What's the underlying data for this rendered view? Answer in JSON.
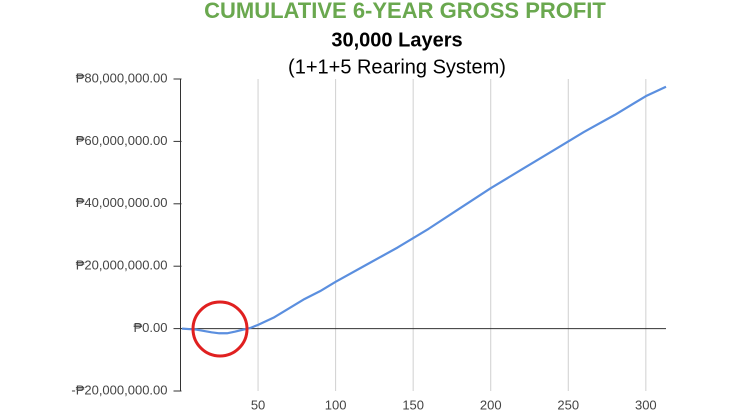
{
  "chart_data": {
    "type": "line",
    "title": "CUMULATIVE 6-YEAR GROSS PROFIT",
    "subtitles": [
      "30,000 Layers",
      "(1+1+5 Rearing System)"
    ],
    "x": [
      1,
      10,
      20,
      25,
      30,
      35,
      40,
      45,
      50,
      60,
      70,
      80,
      90,
      100,
      120,
      140,
      160,
      180,
      200,
      220,
      240,
      260,
      280,
      300,
      313
    ],
    "series": [
      {
        "color": "#5b8fdf",
        "values": [
          0,
          -300000,
          -1200000,
          -1500000,
          -1500000,
          -1000000,
          -400000,
          200000,
          1200000,
          3500000,
          6500000,
          9500000,
          12000000,
          15000000,
          20500000,
          26000000,
          32000000,
          38500000,
          45000000,
          51000000,
          57000000,
          63000000,
          68500000,
          74500000,
          77500000
        ]
      }
    ],
    "xlim": [
      0,
      313
    ],
    "xticks": [
      50,
      100,
      150,
      200,
      250,
      300
    ],
    "ylim": [
      -20000000,
      80000000
    ],
    "yticks": [
      {
        "value": -20000000,
        "label": "-₱20,000,000.00"
      },
      {
        "value": 0,
        "label": "₱0.00"
      },
      {
        "value": 20000000,
        "label": "₱20,000,000.00"
      },
      {
        "value": 40000000,
        "label": "₱40,000,000.00"
      },
      {
        "value": 60000000,
        "label": "₱60,000,000.00"
      },
      {
        "value": 80000000,
        "label": "₱80,000,000.00"
      }
    ],
    "grid": true
  }
}
